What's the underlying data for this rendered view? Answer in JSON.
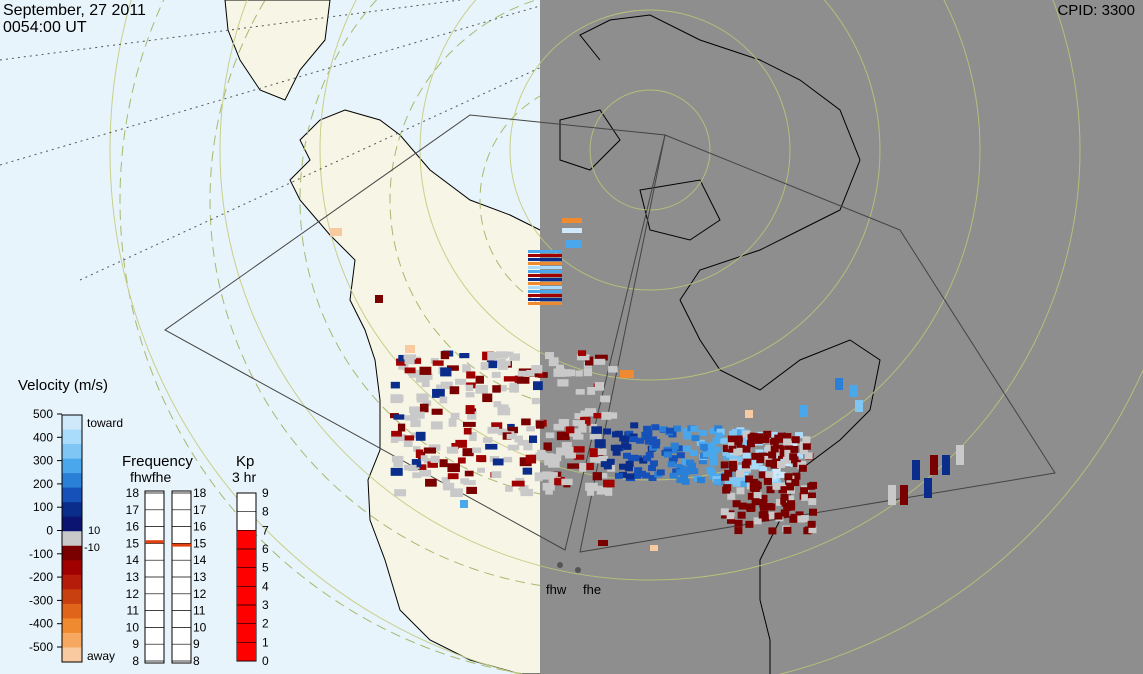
{
  "header": {
    "date": "September, 27 2011",
    "time": "0054:00 UT",
    "cpid": "CPID:  3300"
  },
  "radars": [
    {
      "code": "fhw"
    },
    {
      "code": "fhe"
    }
  ],
  "velocity_scale": {
    "title": "Velocity (m/s)",
    "toward_label": "toward",
    "away_label": "away",
    "ticks": [
      "500",
      "400",
      "300",
      "200",
      "100",
      "0",
      "-100",
      "-200",
      "-300",
      "-400",
      "-500"
    ],
    "ground_scatter_labels": [
      "10",
      "-10"
    ],
    "colors": [
      "#cfe9fb",
      "#a9dcfa",
      "#7fc6f5",
      "#4aa7ec",
      "#2a7fd6",
      "#1551b8",
      "#0a2c8a",
      "#0b1470",
      "#c9c9c9",
      "#7a0000",
      "#a00000",
      "#b51c0a",
      "#c8400f",
      "#e0641a",
      "#f08a30",
      "#f6a860",
      "#f9c9a0"
    ]
  },
  "frequency_scale": {
    "title": "Frequency",
    "subtitle": "fhwfhe",
    "ticks": [
      "18",
      "17",
      "16",
      "15",
      "14",
      "13",
      "12",
      "11",
      "10",
      "9",
      "8"
    ],
    "marker_color": "#e04010",
    "values": [
      {
        "radar": "fhw",
        "mhz": 15.1
      },
      {
        "radar": "fhe",
        "mhz": 14.9
      }
    ]
  },
  "kp_scale": {
    "title": "Kp",
    "subtitle": "3 hr",
    "ticks": [
      "9",
      "8",
      "7",
      "6",
      "5",
      "4",
      "3",
      "2",
      "1",
      "0"
    ],
    "value": 7,
    "fill_color": "#ff0000"
  },
  "colors": {
    "ocean": "#e8f4fb",
    "land_day": "#f7f6e6",
    "night_shade": "#8e8e8e",
    "ground_scatter": "#c9c9c9",
    "coast": "#000000",
    "grid_solid": "#c8cf8a",
    "grid_dash": "#a8b870"
  }
}
